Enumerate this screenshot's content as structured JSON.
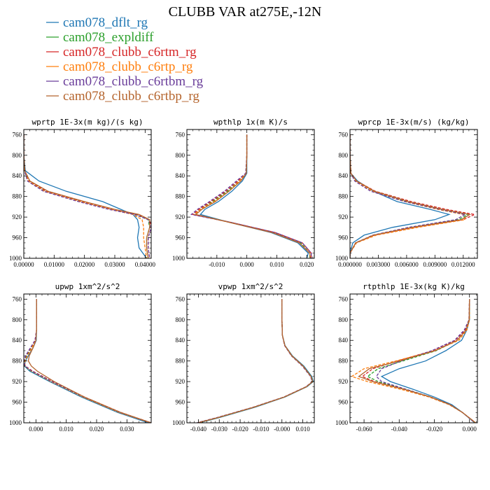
{
  "title": "CLUBB VAR at275E,-12N",
  "legend": [
    {
      "label": "cam078_dflt_rg",
      "color": "#1f77b4",
      "dash": "solid"
    },
    {
      "label": "cam078_expldiff",
      "color": "#2ca02c",
      "dash": "dashed"
    },
    {
      "label": "cam078_clubb_c6rtm_rg",
      "color": "#d62728",
      "dash": "dashed"
    },
    {
      "label": "cam078_clubb_c6rtp_rg",
      "color": "#ff7f0e",
      "dash": "dashed"
    },
    {
      "label": "cam078_clubb_c6rtbm_rg",
      "color": "#6a3d9a",
      "dash": "dashed"
    },
    {
      "label": "cam078_clubb_c6rtbp_rg",
      "color": "#b5652e",
      "dash": "solid"
    }
  ],
  "chart_data": [
    {
      "type": "line",
      "title": "wprtp  1E-3x(m kg)/(s kg)",
      "xlim": [
        0,
        0.042
      ],
      "ylim": [
        1000,
        750
      ],
      "xticks": [
        0,
        0.01,
        0.02,
        0.03,
        0.04
      ],
      "xtick_labels": [
        "0.00000",
        "0.01000",
        "0.02000",
        "0.03000",
        "0.04000"
      ],
      "yticks": [
        760,
        800,
        840,
        880,
        920,
        960,
        1000
      ],
      "y": [
        760,
        800,
        830,
        850,
        870,
        890,
        905,
        915,
        925,
        940,
        960,
        980,
        1000
      ],
      "series": [
        {
          "values": [
            0,
            0,
            0.0005,
            0.005,
            0.014,
            0.026,
            0.032,
            0.036,
            0.0375,
            0.038,
            0.0375,
            0.038,
            0.0405
          ]
        },
        {
          "values": [
            0,
            0,
            0.0003,
            0.0015,
            0.007,
            0.019,
            0.029,
            0.037,
            0.041,
            0.0415,
            0.0405,
            0.0405,
            0.041
          ]
        },
        {
          "values": [
            0,
            0,
            0.0003,
            0.0018,
            0.0075,
            0.0195,
            0.0295,
            0.0375,
            0.0415,
            0.042,
            0.041,
            0.041,
            0.0415
          ]
        },
        {
          "values": [
            0,
            0,
            0.0003,
            0.0015,
            0.0068,
            0.0185,
            0.0285,
            0.036,
            0.039,
            0.0395,
            0.0395,
            0.04,
            0.0405
          ]
        },
        {
          "values": [
            0,
            0,
            0.0002,
            0.0012,
            0.0065,
            0.018,
            0.028,
            0.0365,
            0.041,
            0.042,
            0.041,
            0.041,
            0.0415
          ]
        },
        {
          "values": [
            0,
            0,
            0.0003,
            0.002,
            0.008,
            0.02,
            0.03,
            0.038,
            0.0415,
            0.0415,
            0.0405,
            0.0405,
            0.041
          ]
        }
      ]
    },
    {
      "type": "line",
      "title": "wpthlp  1x(m K)/s",
      "xlim": [
        -0.02,
        0.0225
      ],
      "ylim": [
        1000,
        750
      ],
      "xticks": [
        -0.01,
        0,
        0.01,
        0.02
      ],
      "xtick_labels": [
        "-0.010",
        "0.000",
        "0.010",
        "0.020"
      ],
      "yticks": [
        760,
        800,
        840,
        880,
        920,
        960,
        1000
      ],
      "y": [
        760,
        800,
        835,
        850,
        870,
        890,
        905,
        915,
        930,
        950,
        970,
        990,
        1000
      ],
      "series": [
        {
          "values": [
            0,
            0,
            0,
            -0.0015,
            -0.005,
            -0.0095,
            -0.014,
            -0.0155,
            -0.006,
            0.008,
            0.017,
            0.0205,
            0.02
          ]
        },
        {
          "values": [
            0,
            0,
            -0.0002,
            -0.0025,
            -0.0065,
            -0.0115,
            -0.0155,
            -0.0175,
            -0.0055,
            0.009,
            0.018,
            0.021,
            0.021
          ]
        },
        {
          "values": [
            0,
            0,
            -0.0003,
            -0.003,
            -0.007,
            -0.012,
            -0.016,
            -0.018,
            -0.0055,
            0.0095,
            0.0185,
            0.0215,
            0.0215
          ]
        },
        {
          "values": [
            0,
            0,
            -0.0002,
            -0.0025,
            -0.006,
            -0.011,
            -0.0155,
            -0.0175,
            -0.006,
            0.0085,
            0.0175,
            0.021,
            0.0212
          ]
        },
        {
          "values": [
            0,
            0,
            -0.0004,
            -0.0035,
            -0.0075,
            -0.0125,
            -0.0165,
            -0.0185,
            -0.0055,
            0.0095,
            0.0185,
            0.0215,
            0.0215
          ]
        },
        {
          "values": [
            0,
            0,
            -0.0002,
            -0.002,
            -0.006,
            -0.0105,
            -0.015,
            -0.017,
            -0.006,
            0.0085,
            0.0175,
            0.021,
            0.0212
          ]
        }
      ]
    },
    {
      "type": "line",
      "title": "wprcp  1E-3x(m/s) (kg/kg)",
      "xlim": [
        0,
        0.0135
      ],
      "ylim": [
        1000,
        750
      ],
      "xticks": [
        0,
        0.003,
        0.006,
        0.009,
        0.012
      ],
      "xtick_labels": [
        "0.000000",
        "0.003000",
        "0.006000",
        "0.009000",
        "0.012000"
      ],
      "yticks": [
        760,
        800,
        840,
        880,
        920,
        960,
        1000
      ],
      "y": [
        760,
        800,
        835,
        850,
        870,
        890,
        905,
        915,
        925,
        940,
        955,
        970,
        990,
        1000
      ],
      "series": [
        {
          "values": [
            0,
            0,
            0.0001,
            0.0008,
            0.0025,
            0.005,
            0.0085,
            0.0105,
            0.009,
            0.0045,
            0.0015,
            0.0003,
            0,
            0
          ]
        },
        {
          "values": [
            0,
            0,
            0.0001,
            0.0006,
            0.0025,
            0.006,
            0.0095,
            0.0125,
            0.0115,
            0.0065,
            0.0025,
            0.0006,
            0,
            0
          ]
        },
        {
          "values": [
            0,
            0,
            0.0001,
            0.0007,
            0.0027,
            0.0065,
            0.0102,
            0.0132,
            0.012,
            0.0068,
            0.0026,
            0.0006,
            0,
            0
          ]
        },
        {
          "values": [
            0,
            0,
            0.0001,
            0.0006,
            0.0024,
            0.0058,
            0.0093,
            0.012,
            0.0122,
            0.0072,
            0.0028,
            0.0007,
            0,
            0
          ]
        },
        {
          "values": [
            0,
            0,
            0.0001,
            0.0005,
            0.0022,
            0.0058,
            0.0095,
            0.0122,
            0.0112,
            0.0062,
            0.0024,
            0.0006,
            0,
            0
          ]
        },
        {
          "values": [
            0,
            0,
            0.0001,
            0.0007,
            0.0026,
            0.0062,
            0.0098,
            0.0127,
            0.0118,
            0.0066,
            0.0025,
            0.0006,
            0,
            0
          ]
        }
      ]
    },
    {
      "type": "line",
      "title": "upwp  1xm^2/s^2",
      "xlim": [
        -0.004,
        0.038
      ],
      "ylim": [
        1000,
        750
      ],
      "xticks": [
        0,
        0.01,
        0.02,
        0.03
      ],
      "xtick_labels": [
        "0.000",
        "0.010",
        "0.020",
        "0.030"
      ],
      "yticks": [
        760,
        800,
        840,
        880,
        920,
        960,
        1000
      ],
      "y": [
        760,
        800,
        820,
        840,
        855,
        870,
        880,
        890,
        900,
        920,
        950,
        980,
        1000
      ],
      "series": [
        {
          "values": [
            0.0002,
            0.0002,
            0.0002,
            0.0001,
            -0.001,
            -0.0025,
            -0.0035,
            -0.0038,
            -0.002,
            0.0045,
            0.015,
            0.027,
            0.037
          ]
        },
        {
          "values": [
            0.0002,
            0.0002,
            0.0002,
            -0.0002,
            -0.0015,
            -0.003,
            -0.0038,
            -0.0038,
            -0.0015,
            0.005,
            0.0155,
            0.0275,
            0.038
          ]
        },
        {
          "values": [
            0.0002,
            0.0002,
            0.0002,
            -0.0003,
            -0.0018,
            -0.0033,
            -0.004,
            -0.0035,
            -0.001,
            0.0055,
            0.016,
            0.028,
            0.038
          ]
        },
        {
          "values": [
            0.0002,
            0.0002,
            0.0002,
            -0.0001,
            -0.0014,
            -0.0028,
            -0.0036,
            -0.0036,
            -0.0014,
            0.005,
            0.0155,
            0.0275,
            0.0378
          ]
        },
        {
          "values": [
            0.0002,
            0.0002,
            0.0002,
            -0.0003,
            -0.0019,
            -0.0034,
            -0.004,
            -0.0036,
            -0.0012,
            0.0053,
            0.0158,
            0.0278,
            0.038
          ]
        },
        {
          "values": [
            0.0002,
            0.0002,
            0.0002,
            0,
            -0.001,
            -0.0022,
            -0.0025,
            -0.0015,
            0.0005,
            0.006,
            0.016,
            0.028,
            0.038
          ]
        }
      ]
    },
    {
      "type": "line",
      "title": "vpwp  1xm^2/s^2",
      "xlim": [
        -0.0455,
        0.0155
      ],
      "ylim": [
        1000,
        750
      ],
      "xticks": [
        -0.04,
        -0.03,
        -0.02,
        -0.01,
        0,
        0.01
      ],
      "xtick_labels": [
        "-0.040",
        "-0.030",
        "-0.020",
        "-0.010",
        "-0.000",
        "0.010"
      ],
      "yticks": [
        760,
        800,
        840,
        880,
        920,
        960,
        1000
      ],
      "y": [
        760,
        800,
        830,
        850,
        870,
        890,
        910,
        920,
        930,
        950,
        970,
        990,
        1000
      ],
      "series": [
        {
          "values": [
            0,
            0,
            0.0002,
            0.0015,
            0.005,
            0.0105,
            0.0143,
            0.015,
            0.012,
            0.0015,
            -0.013,
            -0.03,
            -0.0395
          ]
        },
        {
          "values": [
            0,
            0,
            0.0002,
            0.0014,
            0.0048,
            0.0102,
            0.014,
            0.0148,
            0.0118,
            0.0012,
            -0.0135,
            -0.0305,
            -0.04
          ]
        },
        {
          "values": [
            0,
            0,
            0.0002,
            0.0013,
            0.0046,
            0.01,
            0.0138,
            0.0146,
            0.0116,
            0.001,
            -0.0138,
            -0.031,
            -0.0405
          ]
        },
        {
          "values": [
            0,
            0,
            0.0002,
            0.0014,
            0.0048,
            0.0101,
            0.0139,
            0.0147,
            0.0117,
            0.0011,
            -0.0136,
            -0.0307,
            -0.0402
          ]
        },
        {
          "values": [
            0,
            0,
            0.0002,
            0.0013,
            0.0045,
            0.0098,
            0.0137,
            0.0145,
            0.0115,
            0.0009,
            -0.014,
            -0.0312,
            -0.0407
          ]
        },
        {
          "values": [
            0,
            0,
            0.0002,
            0.0014,
            0.0047,
            0.0101,
            0.0139,
            0.0147,
            0.0117,
            0.0011,
            -0.0137,
            -0.0308,
            -0.0403
          ]
        }
      ]
    },
    {
      "type": "line",
      "title": "rtpthlp  1E-3x(kg K)/kg",
      "xlim": [
        -0.068,
        0.0045
      ],
      "ylim": [
        1000,
        750
      ],
      "xticks": [
        -0.06,
        -0.04,
        -0.02,
        0
      ],
      "xtick_labels": [
        "-0.060",
        "-0.040",
        "-0.020",
        "0.000"
      ],
      "yticks": [
        760,
        800,
        840,
        880,
        920,
        960,
        1000
      ],
      "y": [
        760,
        800,
        820,
        840,
        860,
        880,
        895,
        910,
        920,
        935,
        950,
        965,
        980,
        1000
      ],
      "series": [
        {
          "values": [
            0,
            0,
            -0.0015,
            -0.0045,
            -0.0135,
            -0.025,
            -0.04,
            -0.05,
            -0.045,
            -0.032,
            -0.02,
            -0.01,
            -0.004,
            0.003
          ]
        },
        {
          "values": [
            0,
            0,
            -0.002,
            -0.007,
            -0.019,
            -0.038,
            -0.052,
            -0.058,
            -0.052,
            -0.036,
            -0.022,
            -0.011,
            -0.004,
            0.003
          ]
        },
        {
          "values": [
            0,
            -0.0003,
            -0.0025,
            -0.008,
            -0.021,
            -0.041,
            -0.055,
            -0.061,
            -0.054,
            -0.037,
            -0.022,
            -0.011,
            -0.004,
            0.0035
          ]
        },
        {
          "values": [
            0,
            0,
            -0.0015,
            -0.006,
            -0.02,
            -0.042,
            -0.06,
            -0.067,
            -0.058,
            -0.039,
            -0.023,
            -0.0115,
            -0.004,
            0.0035
          ]
        },
        {
          "values": [
            0,
            -0.0003,
            -0.003,
            -0.0085,
            -0.0215,
            -0.039,
            -0.05,
            -0.053,
            -0.05,
            -0.036,
            -0.022,
            -0.011,
            -0.004,
            0.003
          ]
        },
        {
          "values": [
            0,
            -0.0002,
            -0.002,
            -0.007,
            -0.0195,
            -0.04,
            -0.057,
            -0.063,
            -0.055,
            -0.037,
            -0.022,
            -0.011,
            -0.004,
            0.0035
          ]
        }
      ]
    }
  ]
}
